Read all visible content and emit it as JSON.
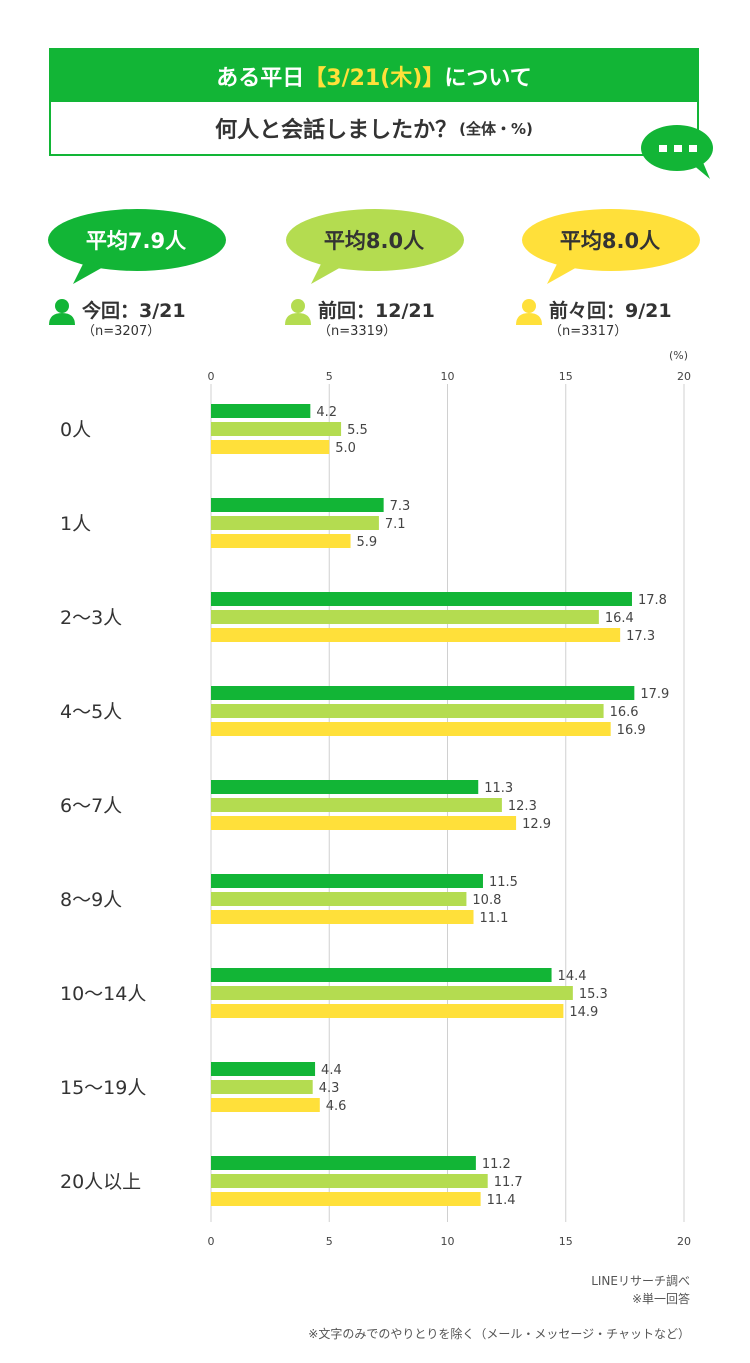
{
  "title": {
    "line1_prefix": "ある平日",
    "line1_highlight": "【3/21(木)】",
    "line1_suffix": "について",
    "line2_main": "何人と会話しましたか？",
    "line2_sub": "(全体・%)"
  },
  "averages": [
    {
      "label": "平均7.9人",
      "color": "#12b536",
      "text_color": "#ffffff"
    },
    {
      "label": "平均8.0人",
      "color": "#b4dc50",
      "text_color": "#333333"
    },
    {
      "label": "平均8.0人",
      "color": "#ffe03a",
      "text_color": "#333333"
    }
  ],
  "legend": [
    {
      "label": "今回：3/21",
      "n": "（n=3207）",
      "color": "#12b536"
    },
    {
      "label": "前回：12/21",
      "n": "（n=3319）",
      "color": "#b4dc50"
    },
    {
      "label": "前々回：9/21",
      "n": "（n=3317）",
      "color": "#ffe03a"
    }
  ],
  "chart_data": {
    "type": "bar",
    "orientation": "horizontal",
    "unit_label": "(%)",
    "xlim": [
      0,
      20
    ],
    "xticks": [
      "0",
      "5",
      "10",
      "15",
      "20"
    ],
    "grid": true,
    "categories": [
      "0人",
      "1人",
      "2〜3人",
      "4〜5人",
      "6〜7人",
      "8〜9人",
      "10〜14人",
      "15〜19人",
      "20人以上"
    ],
    "series": [
      {
        "name": "今回：3/21",
        "color": "#12b536",
        "values": [
          4.2,
          7.3,
          17.8,
          17.9,
          11.3,
          11.5,
          14.4,
          4.4,
          11.2
        ],
        "labels": [
          "4.2",
          "7.3",
          "17.8",
          "17.9",
          "11.3",
          "11.5",
          "14.4",
          "4.4",
          "11.2"
        ]
      },
      {
        "name": "前回：12/21",
        "color": "#b4dc50",
        "values": [
          5.5,
          7.1,
          16.4,
          16.6,
          12.3,
          10.8,
          15.3,
          4.3,
          11.7
        ],
        "labels": [
          "5.5",
          "7.1",
          "16.4",
          "16.6",
          "12.3",
          "10.8",
          "15.3",
          "4.3",
          "11.7"
        ]
      },
      {
        "name": "前々回：9/21",
        "color": "#ffe03a",
        "values": [
          5.0,
          5.9,
          17.3,
          16.9,
          12.9,
          11.1,
          14.9,
          4.6,
          11.4
        ],
        "labels": [
          "5.0",
          "5.9",
          "17.3",
          "16.9",
          "12.9",
          "11.1",
          "14.9",
          "4.6",
          "11.4"
        ]
      }
    ]
  },
  "footer": {
    "source": "LINEリサーチ調べ",
    "note1": "※単一回答",
    "note2": "※文字のみでのやりとりを除く（メール・メッセージ・チャットなど）"
  }
}
